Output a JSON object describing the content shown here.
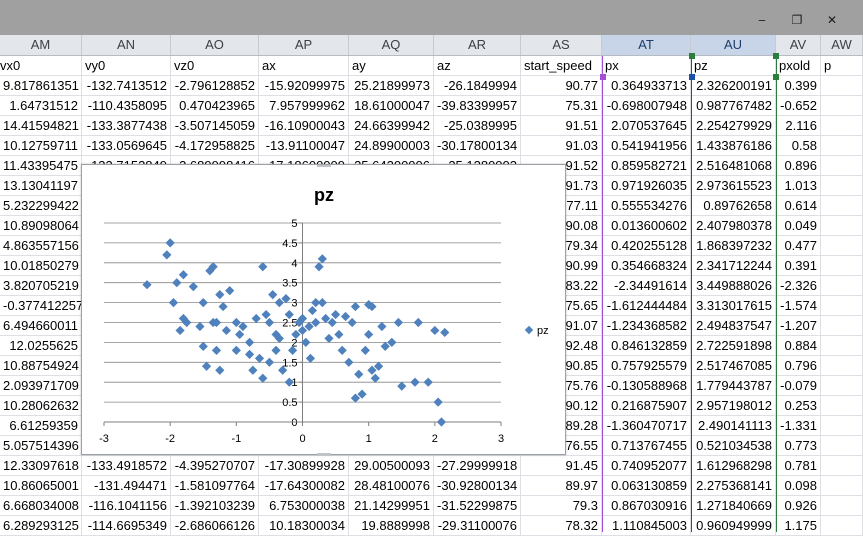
{
  "window": {
    "minimize_glyph": "‒",
    "restore_glyph": "❐",
    "close_glyph": "✕"
  },
  "columns": [
    {
      "id": "AM",
      "header": "vx0"
    },
    {
      "id": "AN",
      "header": "vy0"
    },
    {
      "id": "AO",
      "header": "vz0"
    },
    {
      "id": "AP",
      "header": "ax"
    },
    {
      "id": "AQ",
      "header": "ay"
    },
    {
      "id": "AR",
      "header": "az"
    },
    {
      "id": "AS",
      "header": "start_speed"
    },
    {
      "id": "AT",
      "header": "px"
    },
    {
      "id": "AU",
      "header": "pz"
    },
    {
      "id": "AV",
      "header": "pxold"
    },
    {
      "id": "AW",
      "header": "p"
    }
  ],
  "rows": [
    [
      "9.817861351",
      "-132.7413512",
      "-2.796128852",
      "-15.92099975",
      "25.21899973",
      "-26.1849994",
      "90.77",
      "0.364933713",
      "2.326200191",
      "0.399"
    ],
    [
      "1.64731512",
      "-110.4358095",
      "0.470423965",
      "7.957999962",
      "18.61000047",
      "-39.83399957",
      "75.31",
      "-0.698007948",
      "0.987767482",
      "-0.652"
    ],
    [
      "14.41594821",
      "-133.3877438",
      "-3.507145059",
      "-16.10900043",
      "24.66399942",
      "-25.0389995",
      "91.51",
      "2.070537645",
      "2.254279929",
      "2.116"
    ],
    [
      "10.12759711",
      "-133.0569645",
      "-4.172958825",
      "-13.91100047",
      "24.89900003",
      "-30.17800134",
      "91.03",
      "0.541941956",
      "1.433876186",
      "0.58"
    ],
    [
      "11.43395475",
      "-133.7152849",
      "-2.689998416",
      "-17.18600009",
      "25.64200006",
      "-25.1280002",
      "91.52",
      "0.859582721",
      "2.516481068",
      "0.896"
    ],
    [
      "13.13041197",
      "",
      "",
      "",
      "",
      "",
      "91.73",
      "0.971926035",
      "2.973615523",
      "1.013"
    ],
    [
      "5.232299422",
      "",
      "",
      "",
      "",
      "",
      "77.11",
      "0.555534276",
      "0.89762658",
      "0.614"
    ],
    [
      "10.89098064",
      "",
      "",
      "",
      "",
      "",
      "90.08",
      "0.013600602",
      "2.407980378",
      "0.049"
    ],
    [
      "4.863557156",
      "",
      "",
      "",
      "",
      "",
      "79.34",
      "0.420255128",
      "1.868397232",
      "0.477"
    ],
    [
      "10.01850279",
      "",
      "",
      "",
      "",
      "",
      "90.99",
      "0.354668324",
      "2.341712244",
      "0.391"
    ],
    [
      "3.820705219",
      "",
      "",
      "",
      "",
      "",
      "83.22",
      "-2.34491614",
      "3.449888026",
      "-2.326"
    ],
    [
      "-0.377412257",
      "",
      "",
      "",
      "",
      "",
      "75.65",
      "-1.612444484",
      "3.313017615",
      "-1.574"
    ],
    [
      "6.494660011",
      "",
      "",
      "",
      "",
      "",
      "91.07",
      "-1.234368582",
      "2.494837547",
      "-1.207"
    ],
    [
      "12.0255625",
      "",
      "",
      "",
      "",
      "",
      "92.48",
      "0.846132859",
      "2.722591898",
      "0.884"
    ],
    [
      "10.88754924",
      "",
      "",
      "",
      "",
      "",
      "90.85",
      "0.757925579",
      "2.517467085",
      "0.796"
    ],
    [
      "2.093971709",
      "",
      "",
      "",
      "",
      "",
      "75.76",
      "-0.130588968",
      "1.779443787",
      "-0.079"
    ],
    [
      "10.28062632",
      "",
      "",
      "",
      "",
      "",
      "90.12",
      "0.216875907",
      "2.957198012",
      "0.253"
    ],
    [
      "6.61259359",
      "",
      "",
      "",
      "",
      "",
      "89.28",
      "-1.360470717",
      "2.490141113",
      "-1.331"
    ],
    [
      "5.057514396",
      "",
      "",
      "",
      "",
      "",
      "76.55",
      "0.713767455",
      "0.521034538",
      "0.773"
    ],
    [
      "12.33097618",
      "-133.4918572",
      "-4.395270707",
      "-17.30899928",
      "29.00500093",
      "-27.29999918",
      "91.45",
      "0.740952077",
      "1.612968298",
      "0.781"
    ],
    [
      "10.86065001",
      "-131.494471",
      "-1.581097764",
      "-17.64300082",
      "28.48100076",
      "-30.92800134",
      "89.97",
      "0.063130859",
      "2.275368141",
      "0.098"
    ],
    [
      "6.668034008",
      "-116.1041156",
      "-1.392103239",
      "6.753000038",
      "21.14299951",
      "-31.52299875",
      "79.3",
      "0.867030916",
      "1.271840669",
      "0.926"
    ],
    [
      "6.289293125",
      "-114.6695349",
      "-2.686066126",
      "10.18300034",
      "19.8889998",
      "-29.31100076",
      "78.32",
      "1.110845003",
      "0.960949999",
      "1.175"
    ]
  ],
  "chart_data": {
    "type": "scatter",
    "title": "pz",
    "xlabel": "",
    "ylabel": "",
    "xlim": [
      -3,
      3
    ],
    "ylim": [
      0,
      5
    ],
    "x_ticks": [
      "-3",
      "-2",
      "-1",
      "0",
      "1",
      "2",
      "3"
    ],
    "y_ticks": [
      "0",
      "0.5",
      "1",
      "1.5",
      "2",
      "2.5",
      "3",
      "3.5",
      "4",
      "4.5",
      "5"
    ],
    "grid": true,
    "legend_position": "right",
    "color": "#4f81bd",
    "series": [
      {
        "name": "pz",
        "points": [
          [
            -2.35,
            3.45
          ],
          [
            -2.0,
            4.5
          ],
          [
            -2.05,
            4.2
          ],
          [
            -1.95,
            3.0
          ],
          [
            -1.9,
            3.5
          ],
          [
            -1.8,
            3.7
          ],
          [
            -1.65,
            3.4
          ],
          [
            -1.5,
            3.0
          ],
          [
            -1.4,
            3.8
          ],
          [
            -1.35,
            3.9
          ],
          [
            -1.25,
            3.2
          ],
          [
            -1.2,
            2.9
          ],
          [
            -1.1,
            3.3
          ],
          [
            -1.75,
            2.5
          ],
          [
            -1.85,
            2.3
          ],
          [
            -1.8,
            2.6
          ],
          [
            -1.55,
            2.4
          ],
          [
            -1.35,
            2.5
          ],
          [
            -1.3,
            2.5
          ],
          [
            -1.15,
            2.3
          ],
          [
            -1.0,
            2.5
          ],
          [
            -0.9,
            2.4
          ],
          [
            -0.8,
            2.0
          ],
          [
            -0.7,
            2.6
          ],
          [
            -0.5,
            2.5
          ],
          [
            -0.55,
            2.7
          ],
          [
            -1.5,
            1.9
          ],
          [
            -1.3,
            1.8
          ],
          [
            -1.45,
            1.4
          ],
          [
            -1.25,
            1.3
          ],
          [
            -1.0,
            1.8
          ],
          [
            -0.95,
            2.2
          ],
          [
            -0.8,
            1.7
          ],
          [
            -0.75,
            1.3
          ],
          [
            -0.65,
            1.6
          ],
          [
            -0.6,
            1.1
          ],
          [
            -0.5,
            1.5
          ],
          [
            -0.4,
            1.8
          ],
          [
            -0.35,
            2.1
          ],
          [
            -0.6,
            3.9
          ],
          [
            -0.45,
            3.2
          ],
          [
            -0.35,
            3.0
          ],
          [
            -0.4,
            2.2
          ],
          [
            -0.3,
            1.3
          ],
          [
            -0.2,
            1.0
          ],
          [
            -0.15,
            1.8
          ],
          [
            -0.1,
            2.2
          ],
          [
            -0.05,
            2.5
          ],
          [
            0.0,
            2.3
          ],
          [
            0.05,
            2.0
          ],
          [
            0.1,
            2.4
          ],
          [
            0.12,
            1.6
          ],
          [
            0.15,
            2.8
          ],
          [
            0.2,
            3.0
          ],
          [
            0.25,
            3.9
          ],
          [
            0.3,
            4.1
          ],
          [
            0.3,
            3.0
          ],
          [
            0.35,
            2.6
          ],
          [
            0.4,
            2.1
          ],
          [
            0.45,
            2.5
          ],
          [
            0.5,
            2.7
          ],
          [
            0.55,
            2.2
          ],
          [
            0.6,
            1.8
          ],
          [
            0.7,
            1.5
          ],
          [
            0.75,
            2.5
          ],
          [
            0.8,
            2.9
          ],
          [
            0.85,
            1.2
          ],
          [
            0.8,
            0.6
          ],
          [
            0.9,
            0.7
          ],
          [
            0.95,
            1.8
          ],
          [
            1.0,
            2.2
          ],
          [
            1.05,
            1.3
          ],
          [
            1.1,
            1.1
          ],
          [
            1.15,
            1.4
          ],
          [
            1.2,
            2.4
          ],
          [
            1.25,
            1.9
          ],
          [
            1.35,
            2.0
          ],
          [
            1.45,
            2.5
          ],
          [
            1.5,
            0.9
          ],
          [
            1.7,
            1.0
          ],
          [
            1.75,
            2.5
          ],
          [
            1.9,
            1.0
          ],
          [
            2.0,
            2.3
          ],
          [
            2.05,
            0.5
          ],
          [
            2.1,
            0.0
          ],
          [
            2.15,
            2.25
          ],
          [
            1.0,
            2.95
          ],
          [
            1.05,
            2.9
          ],
          [
            0.65,
            2.65
          ],
          [
            0.2,
            2.5
          ],
          [
            0.0,
            2.6
          ],
          [
            -0.2,
            2.7
          ],
          [
            -0.25,
            3.1
          ]
        ]
      }
    ]
  }
}
